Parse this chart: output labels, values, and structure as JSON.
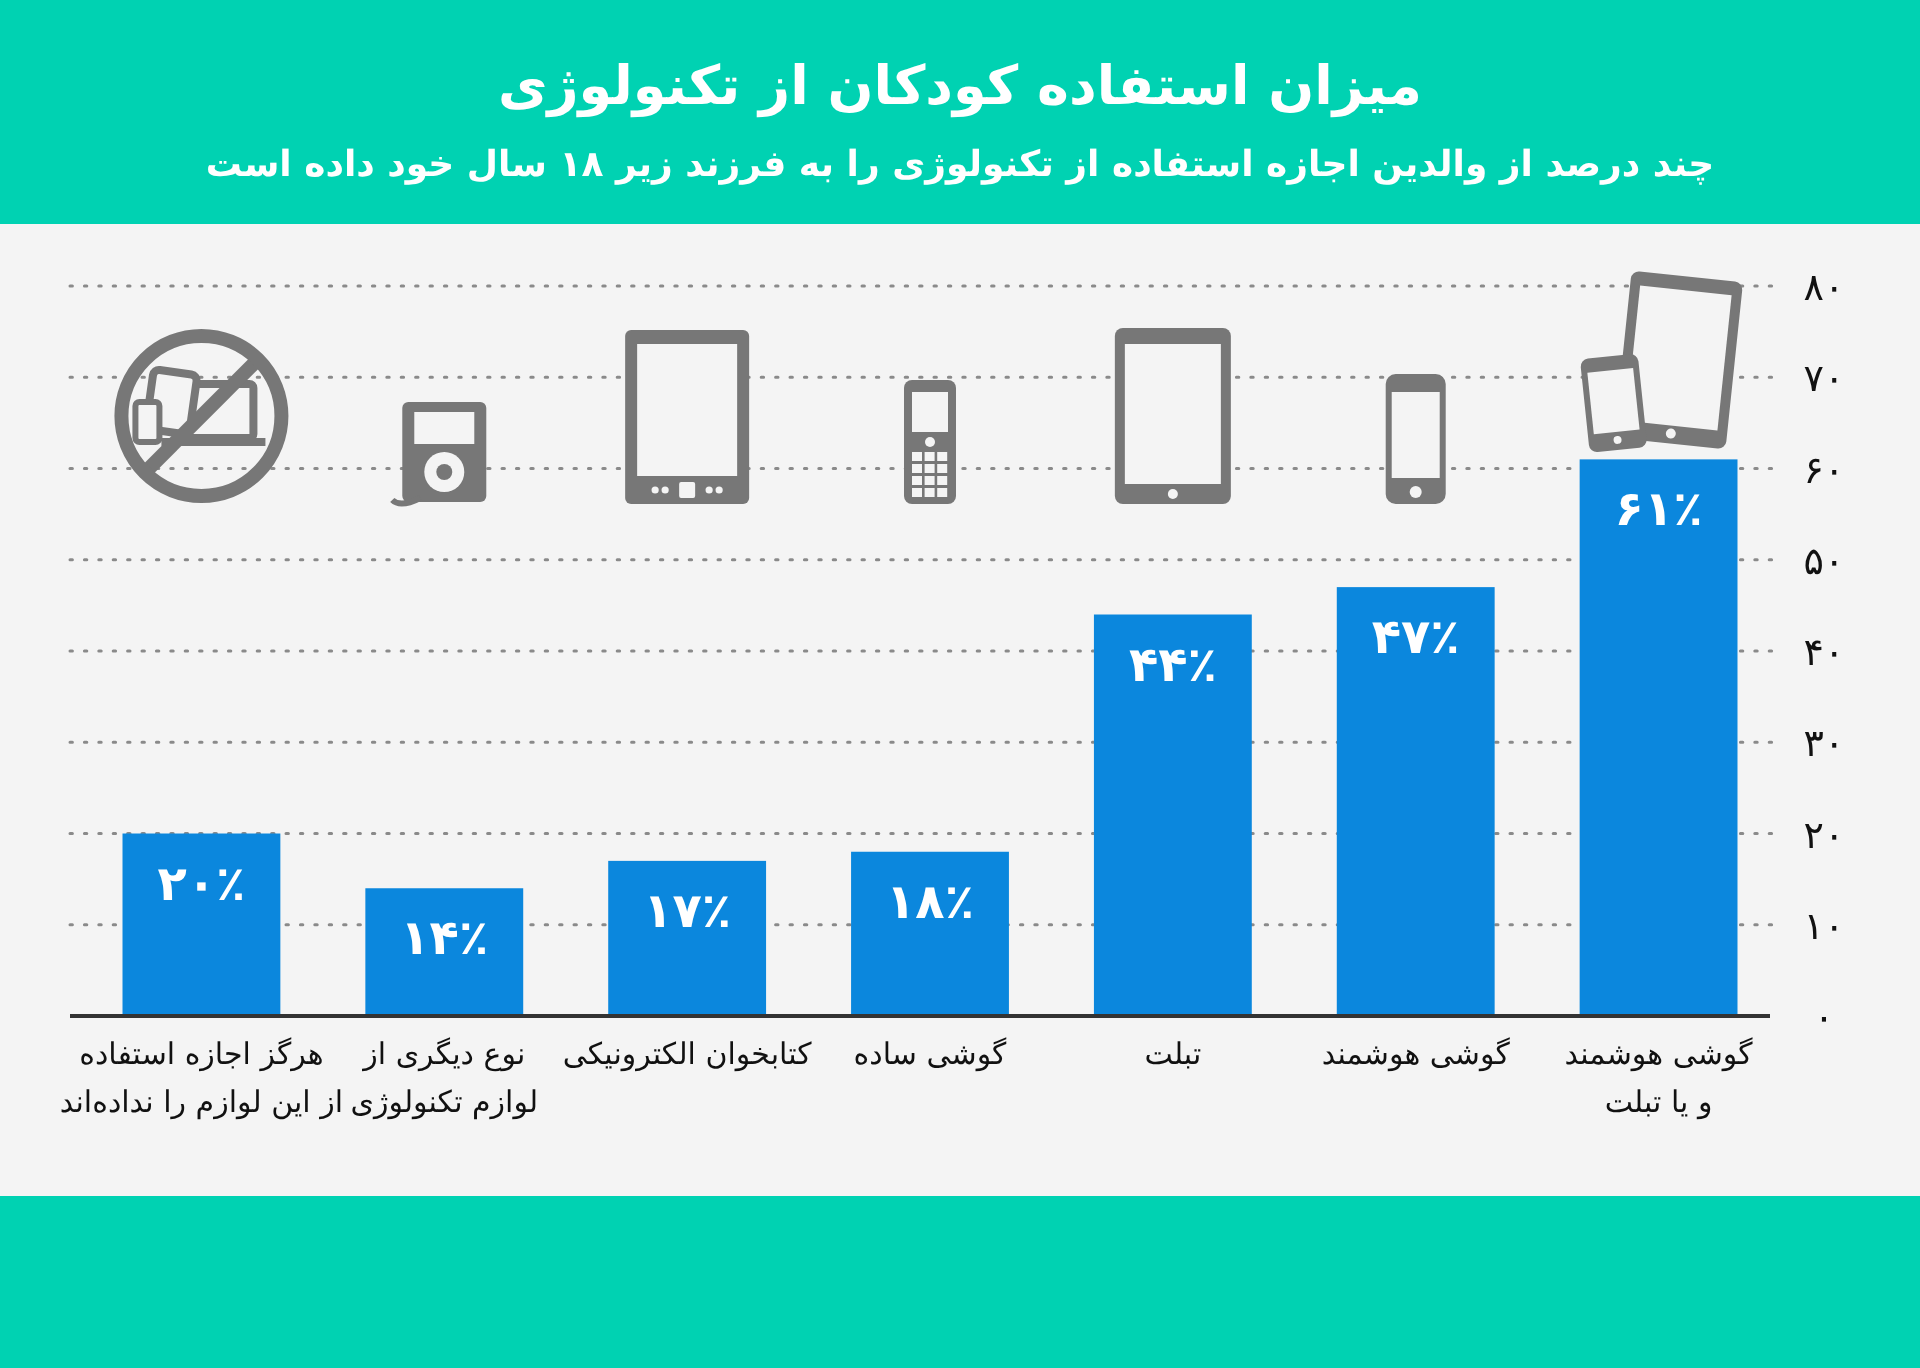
{
  "chart_data": {
    "type": "bar",
    "title": "میزان استفاده کودکان از تکنولوژی",
    "subtitle": "چند درصد از والدین اجازه استفاده از تکنولوژی را به فرزند زیر ۱۸ سال خود داده است",
    "categories": [
      "هرگز اجازه استفاده\nاز این لوازم را نداده‌اند",
      "نوع دیگری از\nلوازم تکنولوژی",
      "کتابخوان الکترونیکی",
      "گوشی ساده",
      "تبلت",
      "گوشی هوشمند",
      "گوشی هوشمند\nو یا تبلت"
    ],
    "values": [
      20,
      14,
      17,
      18,
      44,
      47,
      61
    ],
    "color": "#0b87dd",
    "value_labels": [
      "۲۰٪",
      "۱۴٪",
      "۱۷٪",
      "۱۸٪",
      "۴۴٪",
      "۴۷٪",
      "۶۱٪"
    ],
    "ylim": [
      0,
      80
    ],
    "yticks": [
      {
        "value": 0,
        "label": "۰"
      },
      {
        "value": 10,
        "label": "۱۰"
      },
      {
        "value": 20,
        "label": "۲۰"
      },
      {
        "value": 30,
        "label": "۳۰"
      },
      {
        "value": 40,
        "label": "۴۰"
      },
      {
        "value": 50,
        "label": "۵۰"
      },
      {
        "value": 60,
        "label": "۶۰"
      },
      {
        "value": 70,
        "label": "۷۰"
      },
      {
        "value": 80,
        "label": "۸۰"
      }
    ],
    "grid": "y"
  }
}
